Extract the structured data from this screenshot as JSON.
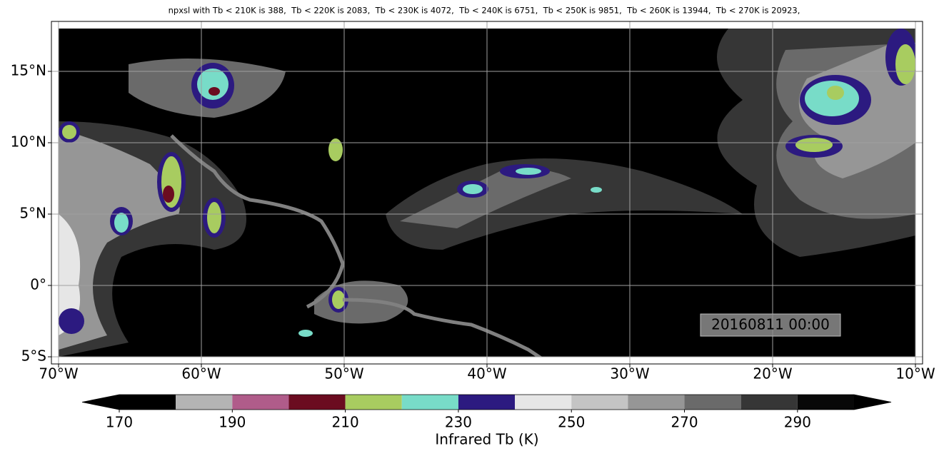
{
  "title": "npxsl with Tb < 210K is 388,  Tb < 220K is 2083,  Tb < 230K is 4072,  Tb < 240K is 6751,  Tb < 250K is 9851,  Tb < 260K is 13944,  Tb < 270K is 20923,",
  "map": {
    "xlim": [
      -70.5,
      -9.5
    ],
    "ylim": [
      -5.5,
      18.5
    ],
    "xticks": [
      {
        "value": -70,
        "label": "70°W"
      },
      {
        "value": -60,
        "label": "60°W"
      },
      {
        "value": -50,
        "label": "50°W"
      },
      {
        "value": -40,
        "label": "40°W"
      },
      {
        "value": -30,
        "label": "30°W"
      },
      {
        "value": -20,
        "label": "20°W"
      },
      {
        "value": -10,
        "label": "10°W"
      }
    ],
    "yticks": [
      {
        "value": -5,
        "label": "5°S"
      },
      {
        "value": 0,
        "label": "0°"
      },
      {
        "value": 5,
        "label": "5°N"
      },
      {
        "value": 10,
        "label": "10°N"
      },
      {
        "value": 15,
        "label": "15°N"
      }
    ],
    "grid": true,
    "timestamp": "20160811 00:00"
  },
  "colorbar": {
    "label": "Infrared Tb (K)",
    "levels": [
      170,
      180,
      190,
      200,
      210,
      220,
      230,
      240,
      250,
      260,
      270,
      280,
      290,
      300
    ],
    "colors": [
      "#000000",
      "#b4b4b4",
      "#b05c8a",
      "#6b0c20",
      "#a8cc60",
      "#78dcc8",
      "#2c1a80",
      "#e6e6e6",
      "#c4c4c4",
      "#969696",
      "#6a6a6a",
      "#363636",
      "#080808"
    ],
    "extend_colors": [
      "#000000",
      "#000000"
    ],
    "ticks": [
      170,
      190,
      210,
      230,
      250,
      270,
      290
    ]
  }
}
